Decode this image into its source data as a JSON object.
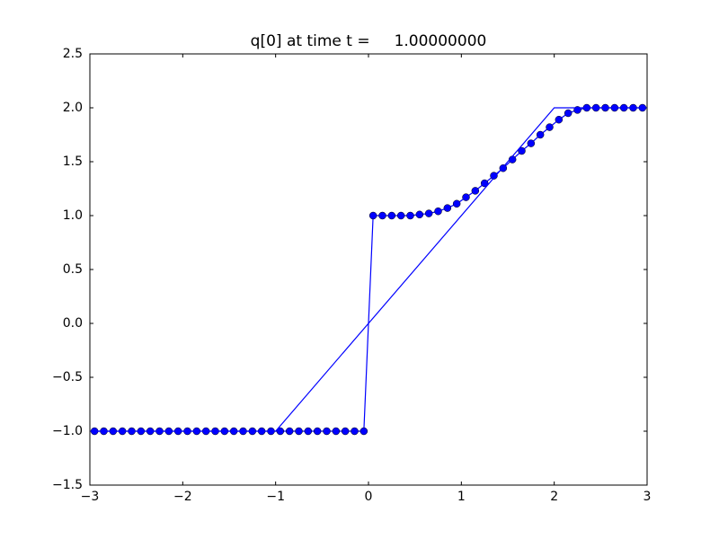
{
  "chart_data": {
    "type": "line",
    "title": "q[0] at time t =     1.00000000",
    "xlim": [
      -3,
      3
    ],
    "ylim": [
      -1.5,
      2.5
    ],
    "xticks": [
      {
        "value": -3,
        "label": "−3"
      },
      {
        "value": -2,
        "label": "−2"
      },
      {
        "value": -1,
        "label": "−1"
      },
      0,
      1,
      2,
      3
    ],
    "yticks": [
      {
        "value": -1.5,
        "label": "−1.5"
      },
      {
        "value": -1,
        "label": "−1.0"
      },
      {
        "value": -0.5,
        "label": "−0.5"
      },
      {
        "value": 0,
        "label": "0.0"
      },
      0.5,
      {
        "value": 1,
        "label": "1.0"
      },
      1.5,
      {
        "value": 2,
        "label": "2.0"
      },
      2.5
    ],
    "series": [
      {
        "color": "#0000ff",
        "marker": "o",
        "x": [
          -2.95,
          -2.85,
          -2.75,
          -2.65,
          -2.55,
          -2.45,
          -2.35,
          -2.25,
          -2.15,
          -2.05,
          -1.95,
          -1.85,
          -1.75,
          -1.65,
          -1.55,
          -1.45,
          -1.35,
          -1.25,
          -1.15,
          -1.05,
          -0.95,
          -0.85,
          -0.75,
          -0.65,
          -0.55,
          -0.45,
          -0.35,
          -0.25,
          -0.15,
          -0.05,
          0.05,
          0.15,
          0.25,
          0.35,
          0.45,
          0.55,
          0.65,
          0.75,
          0.85,
          0.95,
          1.05,
          1.15,
          1.25,
          1.35,
          1.45,
          1.55,
          1.65,
          1.75,
          1.85,
          1.95,
          2.05,
          2.15,
          2.25,
          2.35,
          2.45,
          2.55,
          2.65,
          2.75,
          2.85,
          2.95
        ],
        "values": [
          -1,
          -1,
          -1,
          -1,
          -1,
          -1,
          -1,
          -1,
          -1,
          -1,
          -1,
          -1,
          -1,
          -1,
          -1,
          -1,
          -1,
          -1,
          -1,
          -1,
          -1,
          -1,
          -1,
          -1,
          -1,
          -1,
          -1,
          -1,
          -1,
          -1,
          1,
          1,
          1,
          1,
          1,
          1.01,
          1.02,
          1.04,
          1.07,
          1.11,
          1.17,
          1.23,
          1.3,
          1.37,
          1.44,
          1.52,
          1.6,
          1.67,
          1.75,
          1.82,
          1.89,
          1.95,
          1.98,
          2,
          2,
          2,
          2,
          2,
          2,
          2
        ]
      },
      {
        "color": "#0000ff",
        "x": [
          -3,
          -1,
          2,
          3
        ],
        "values": [
          -1,
          -1,
          2,
          2
        ]
      }
    ]
  }
}
